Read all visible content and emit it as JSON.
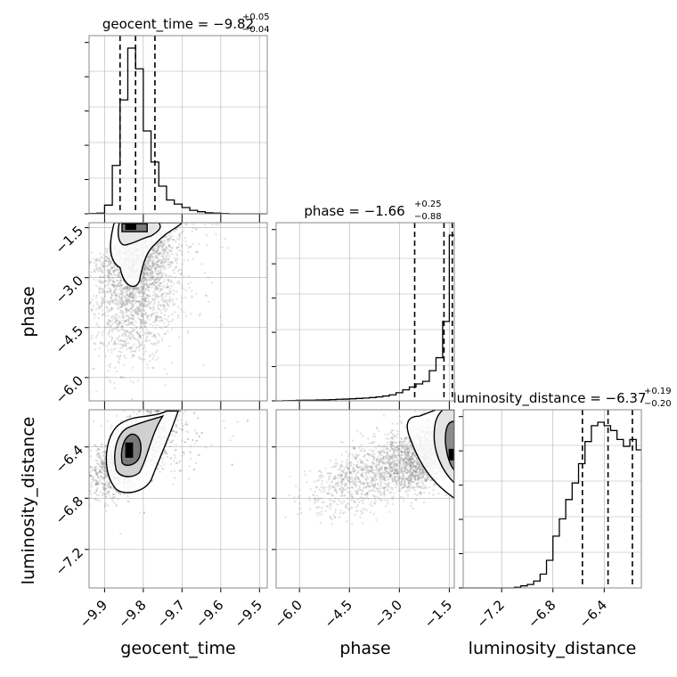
{
  "chart_data": {
    "type": "corner",
    "parameters": [
      "geocent_time",
      "phase",
      "luminosity_distance"
    ],
    "titles": [
      {
        "text": "geocent_time = −9.82",
        "plus": "+0.05",
        "minus": "−0.04"
      },
      {
        "text": "phase = −1.66",
        "plus": "+0.25",
        "minus": "−0.88"
      },
      {
        "text": "luminosity_distance = −6.37",
        "plus": "+0.19",
        "minus": "−0.20"
      }
    ],
    "ranges": {
      "geocent_time": [
        -9.94,
        -9.48
      ],
      "phase": [
        -6.7,
        -1.35
      ],
      "luminosity_distance": [
        -7.5,
        -6.11
      ]
    },
    "ticks": {
      "geocent_time": [
        -9.9,
        -9.8,
        -9.7,
        -9.6,
        -9.5
      ],
      "phase": [
        -6.0,
        -4.5,
        -3.0,
        -1.5
      ],
      "luminosity_distance": [
        -7.2,
        -6.8,
        -6.4
      ]
    },
    "tick_labels": {
      "geocent_time": [
        "−9.9",
        "−9.8",
        "−9.7",
        "−9.6",
        "−9.5"
      ],
      "phase": [
        "−6.0",
        "−4.5",
        "−3.0",
        "−1.5"
      ],
      "luminosity_distance": [
        "−7.2",
        "−6.8",
        "−6.4"
      ]
    },
    "quantiles": {
      "geocent_time": [
        -9.86,
        -9.82,
        -9.77
      ],
      "phase": [
        -2.54,
        -1.66,
        -1.41
      ],
      "luminosity_distance": [
        -6.57,
        -6.37,
        -6.18
      ]
    },
    "histograms": {
      "geocent_time": {
        "bin_start": -9.94,
        "bin_width": 0.02,
        "counts": [
          1,
          2,
          25,
          140,
          330,
          480,
          420,
          240,
          150,
          80,
          40,
          28,
          18,
          10,
          6,
          3,
          2,
          1,
          0,
          0,
          0,
          0,
          0
        ]
      },
      "phase": {
        "bin_start": -6.7,
        "bin_width": 0.2,
        "counts": [
          0,
          1,
          2,
          3,
          4,
          4,
          5,
          6,
          7,
          9,
          10,
          12,
          14,
          16,
          19,
          23,
          28,
          35,
          47,
          64,
          80,
          98,
          113,
          175,
          250,
          460,
          960
        ]
      },
      "luminosity_distance": {
        "bin_start": -7.5,
        "bin_width": 0.05,
        "counts": [
          0,
          0,
          0,
          0,
          0,
          0,
          0,
          0,
          1,
          3,
          5,
          10,
          20,
          40,
          75,
          100,
          128,
          152,
          180,
          212,
          235,
          240,
          235,
          228,
          215,
          205,
          215,
          200
        ]
      }
    },
    "densities": {
      "phase_vs_geocent_time": {
        "x": "geocent_time",
        "y": "phase",
        "corr": 0.55,
        "skew_y": "tail toward negative"
      },
      "luminosity_distance_vs_geocent_time": {
        "x": "geocent_time",
        "y": "luminosity_distance",
        "corr": 0.35
      },
      "luminosity_distance_vs_phase": {
        "x": "phase",
        "y": "luminosity_distance",
        "corr": 0.5
      }
    },
    "grid": true,
    "colors": {
      "line": "#000000",
      "grid": "#b0b0b0",
      "scatter": "#808080"
    }
  }
}
